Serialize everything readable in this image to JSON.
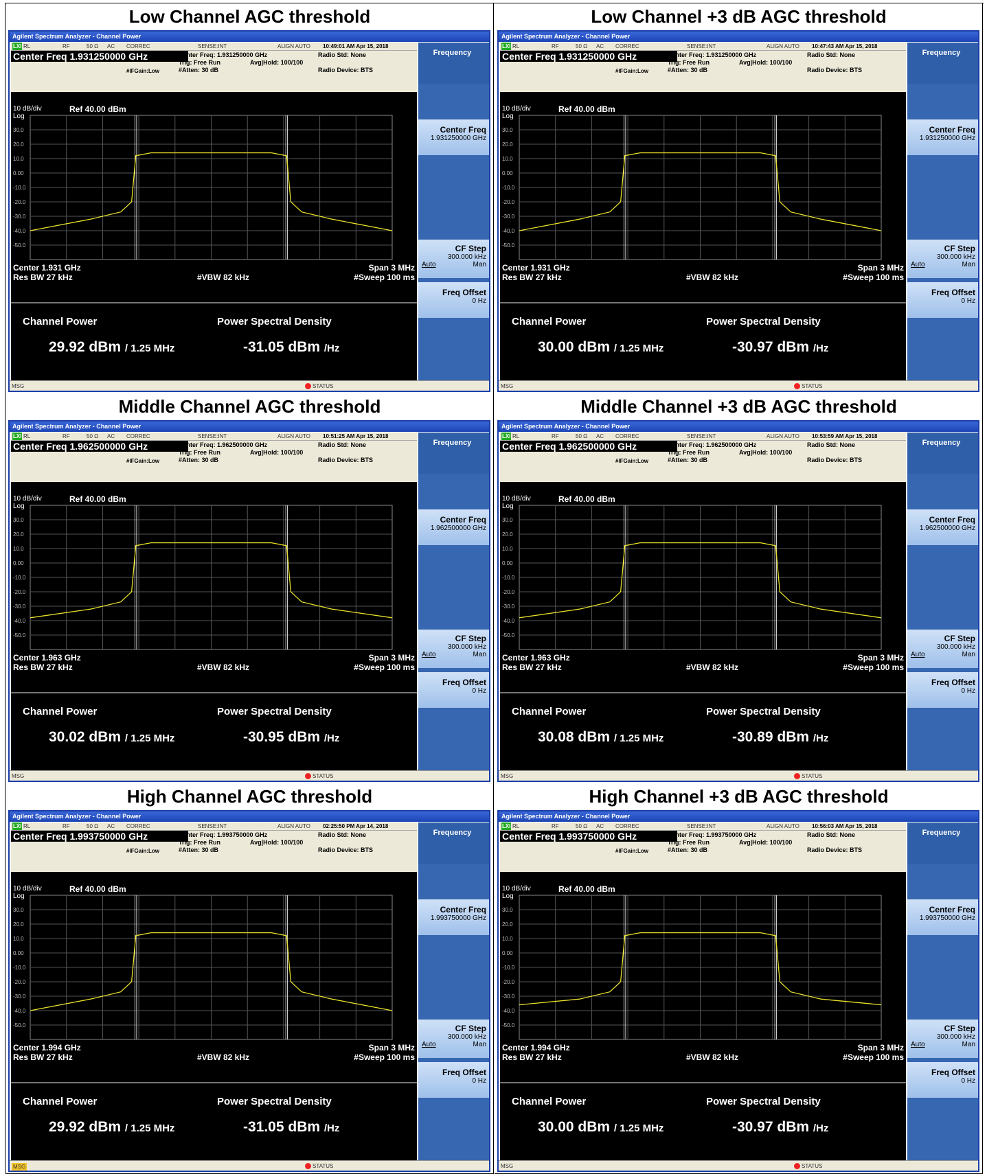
{
  "app_title": "Agilent Spectrum Analyzer - Channel Power",
  "header_strip": {
    "rl_icon": "LXI",
    "rl": "RL",
    "rf": "RF",
    "ohm": "50 Ω",
    "ac": "AC",
    "correc": "CORREC",
    "sense": "SENSE:INT",
    "align": "ALIGN AUTO"
  },
  "trig": "Trig: Free Run",
  "avg_hold": "Avg|Hold: 100/100",
  "atten": "#Atten: 30 dB",
  "if_gain": "#IFGain:Low",
  "radio_std": "Radio Std: None",
  "radio_device": "Radio Device: BTS",
  "scale": "10 dB/div",
  "log": "Log",
  "ref_level": "Ref 40.00 dBm",
  "y_ticks": [
    "30.0",
    "20.0",
    "10.0",
    "0.00",
    "-10.0",
    "-20.0",
    "-30.0",
    "-40.0",
    "-50.0"
  ],
  "res_bw": "Res BW  27 kHz",
  "vbw": "#VBW  82 kHz",
  "span": "Span 3 MHz",
  "sweep": "#Sweep  100 ms",
  "channel_power_label": "Channel Power",
  "psd_label": "Power Spectral Density",
  "cp_unit": "/ 1.25 MHz",
  "psd_unit": "/Hz",
  "softkeys": {
    "menu": "Frequency",
    "center_freq": "Center Freq",
    "cf_step": "CF Step",
    "cf_step_val": "300.000 kHz",
    "auto": "Auto",
    "man": "Man",
    "freq_offset": "Freq Offset",
    "freq_offset_val": "0 Hz"
  },
  "status": {
    "msg": "MSG",
    "status": "STATUS"
  },
  "trace_color": "#e8e02a",
  "trace_shape": {
    "x_mhz": [
      -1.5,
      -1.0,
      -0.75,
      -0.66,
      -0.625,
      -0.5,
      -0.25,
      0,
      0.25,
      0.5,
      0.625,
      0.66,
      0.75,
      1.0,
      1.5
    ],
    "y_dbm": [
      -40,
      -32,
      -27,
      -20,
      12,
      14,
      14,
      14,
      14,
      14,
      12,
      -20,
      -27,
      -32,
      -40
    ]
  },
  "panels": [
    {
      "title": "Low Channel AGC threshold",
      "timestamp": "10:49:01 AM Apr 15, 2018",
      "center_freq_box": "Center Freq  1.931250000 GHz",
      "center_freq_hdr": "Center Freq: 1.931250000 GHz",
      "center_short": "Center  1.931 GHz",
      "cf_val": "1.931250000 GHz",
      "channel_power": "29.92 dBm",
      "psd": "-31.05 dBm",
      "edge_db": -40,
      "msg_highlight": false
    },
    {
      "title": "Low Channel +3 dB AGC threshold",
      "timestamp": "10:47:43 AM Apr 15, 2018",
      "center_freq_box": "Center Freq  1.931250000 GHz",
      "center_freq_hdr": "Center Freq: 1.931250000 GHz",
      "center_short": "Center  1.931 GHz",
      "cf_val": "1.931250000 GHz",
      "channel_power": "30.00 dBm",
      "psd": "-30.97 dBm",
      "edge_db": -40,
      "msg_highlight": false
    },
    {
      "title": "Middle Channel AGC threshold",
      "timestamp": "10:51:25 AM Apr 15, 2018",
      "center_freq_box": "Center Freq  1.962500000 GHz",
      "center_freq_hdr": "Center Freq: 1.962500000 GHz",
      "center_short": "Center  1.963 GHz",
      "cf_val": "1.962500000 GHz",
      "channel_power": "30.02 dBm",
      "psd": "-30.95 dBm",
      "edge_db": -38,
      "msg_highlight": false
    },
    {
      "title": "Middle Channel +3 dB AGC threshold",
      "timestamp": "10:53:59 AM Apr 15, 2018",
      "center_freq_box": "Center Freq  1.962500000 GHz",
      "center_freq_hdr": "Center Freq: 1.962500000 GHz",
      "center_short": "Center  1.963 GHz",
      "cf_val": "1.962500000 GHz",
      "channel_power": "30.08 dBm",
      "psd": "-30.89 dBm",
      "edge_db": -38,
      "msg_highlight": false
    },
    {
      "title": "High Channel AGC threshold",
      "timestamp": "02:25:50 PM Apr 14, 2018",
      "center_freq_box": "Center Freq  1.993750000 GHz",
      "center_freq_hdr": "Center Freq: 1.993750000 GHz",
      "center_short": "Center  1.994 GHz",
      "cf_val": "1.993750000 GHz",
      "channel_power": "29.92 dBm",
      "psd": "-31.05 dBm",
      "edge_db": -40,
      "msg_highlight": true
    },
    {
      "title": "High Channel +3 dB AGC threshold",
      "timestamp": "10:56:03 AM Apr 15, 2018",
      "center_freq_box": "Center Freq  1.993750000 GHz",
      "center_freq_hdr": "Center Freq: 1.993750000 GHz",
      "center_short": "Center  1.994 GHz",
      "cf_val": "1.993750000 GHz",
      "channel_power": "30.00 dBm",
      "psd": "-30.97 dBm",
      "edge_db": -36,
      "msg_highlight": false
    }
  ]
}
